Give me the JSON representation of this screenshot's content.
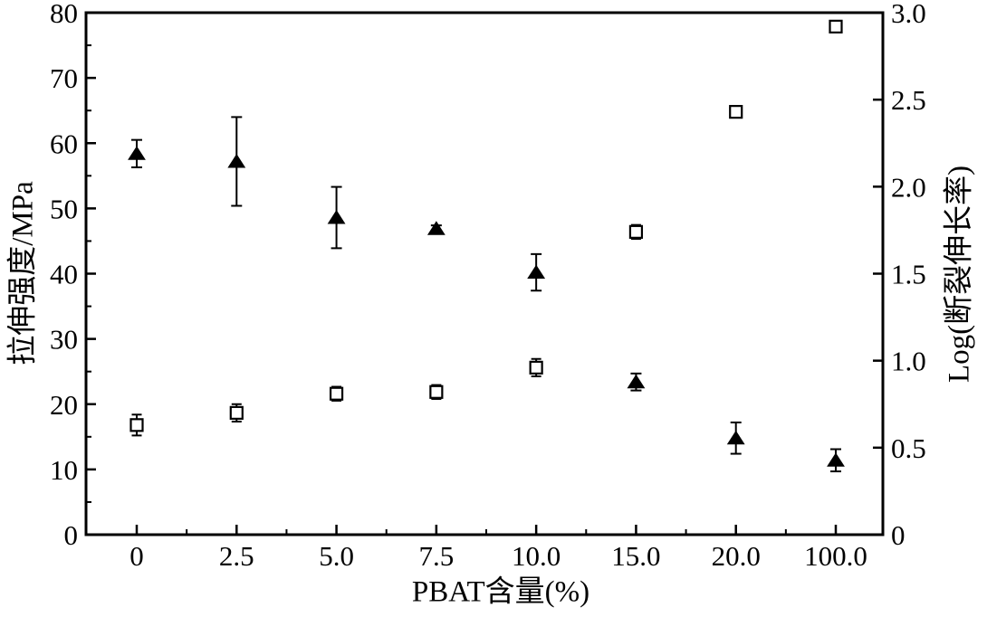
{
  "figure": {
    "background": "#ffffff",
    "frame_color": "#000000"
  },
  "chart_data": {
    "type": "scatter",
    "title": "",
    "xlabel": "PBAT含量(%)",
    "categories": [
      "0",
      "2.5",
      "5.0",
      "7.5",
      "10.0",
      "15.0",
      "20.0",
      "100.0"
    ],
    "grid": false,
    "legend": "none",
    "left_axis": {
      "label": "拉伸强度/MPa",
      "range": [
        0,
        80
      ],
      "major_ticks": [
        0,
        10,
        20,
        30,
        40,
        50,
        60,
        70,
        80
      ],
      "tick_labels": [
        "0",
        "10",
        "20",
        "30",
        "40",
        "50",
        "60",
        "70",
        "80"
      ],
      "minor_ticks": [
        5,
        15,
        25,
        35,
        45,
        55,
        65,
        75
      ]
    },
    "right_axis": {
      "label": "Log(断裂伸长率)",
      "range": [
        0,
        3.0
      ],
      "major_ticks": [
        0,
        0.5,
        1.0,
        1.5,
        2.0,
        2.5,
        3.0
      ],
      "tick_labels": [
        "0",
        "0.5",
        "1.0",
        "1.5",
        "2.0",
        "2.5",
        "3.0"
      ],
      "minor_ticks": []
    },
    "series": [
      {
        "name": "tensile-strength",
        "label_ref": "拉伸强度/MPa",
        "axis": "left",
        "marker": "filled-triangle",
        "color": "#000000",
        "values": [
          58.4,
          57.2,
          48.6,
          46.9,
          40.2,
          23.4,
          14.8,
          11.4
        ],
        "errors": [
          2.1,
          6.8,
          4.7,
          0.5,
          2.8,
          1.3,
          2.4,
          1.7
        ]
      },
      {
        "name": "log-elongation-at-break",
        "label_ref": "Log(断裂伸长率)",
        "axis": "right",
        "marker": "open-square",
        "color": "#000000",
        "values": [
          0.63,
          0.7,
          0.81,
          0.82,
          0.96,
          1.74,
          2.43,
          2.92
        ],
        "errors": [
          0.06,
          0.05,
          0.04,
          0.04,
          0.05,
          0.04,
          0,
          0
        ]
      }
    ]
  }
}
